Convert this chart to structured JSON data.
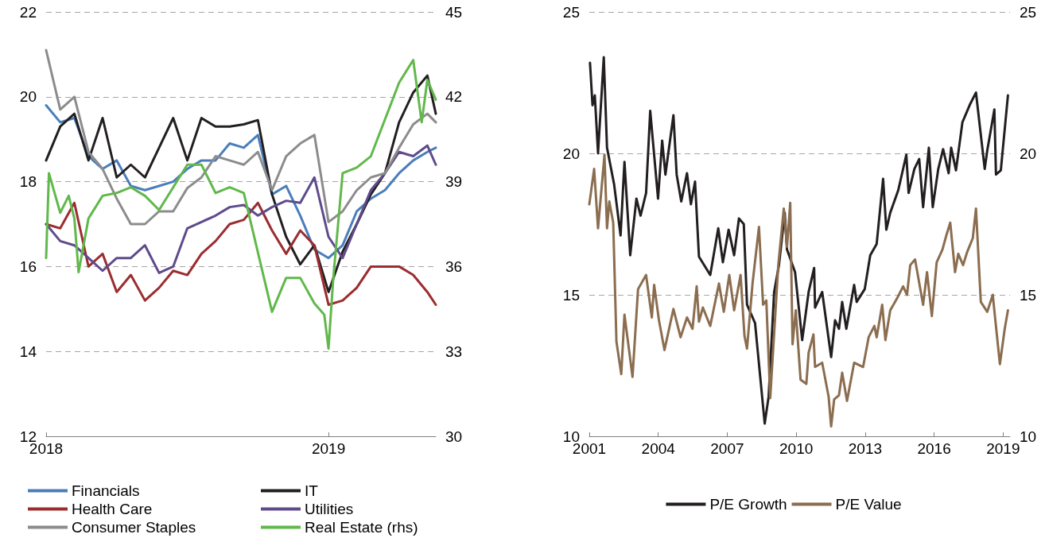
{
  "chart_data": [
    {
      "type": "line",
      "x": [
        2018,
        2018.05,
        2018.1,
        2018.15,
        2018.2,
        2018.25,
        2018.3,
        2018.35,
        2018.4,
        2018.45,
        2018.5,
        2018.55,
        2018.6,
        2018.65,
        2018.7,
        2018.75,
        2018.8,
        2018.85,
        2018.9,
        2018.95,
        2019,
        2019.05,
        2019.1,
        2019.15,
        2019.2,
        2019.25,
        2019.3,
        2019.35,
        2019.38
      ],
      "series": [
        {
          "name": "Financials",
          "color": "#4a7ebb",
          "values": [
            19.8,
            19.4,
            19.5,
            18.6,
            18.3,
            18.5,
            17.9,
            17.8,
            17.9,
            18.0,
            18.3,
            18.5,
            18.5,
            18.9,
            18.8,
            19.1,
            17.7,
            17.9,
            17.2,
            16.4,
            16.2,
            16.5,
            17.3,
            17.6,
            17.8,
            18.2,
            18.5,
            18.7,
            18.8
          ]
        },
        {
          "name": "IT",
          "color": "#231f20",
          "values": [
            18.5,
            19.3,
            19.6,
            18.5,
            19.5,
            18.1,
            18.4,
            18.1,
            18.8,
            19.5,
            18.5,
            19.5,
            19.3,
            19.3,
            19.35,
            19.45,
            17.7,
            16.7,
            16.05,
            16.5,
            15.4,
            16.35,
            17.0,
            17.7,
            18.2,
            19.4,
            20.1,
            20.5,
            19.6
          ]
        },
        {
          "name": "Health Care",
          "color": "#9b2d30",
          "values": [
            17.0,
            16.9,
            17.5,
            16.0,
            16.3,
            15.4,
            15.8,
            15.2,
            15.5,
            15.9,
            15.8,
            16.3,
            16.6,
            17.0,
            17.1,
            17.5,
            16.85,
            16.3,
            16.85,
            16.5,
            15.1,
            15.2,
            15.5,
            16.0,
            16.0,
            16.0,
            15.8,
            15.4,
            15.1
          ]
        },
        {
          "name": "Utilities",
          "color": "#5f4b8b",
          "values": [
            17.0,
            16.6,
            16.5,
            16.2,
            15.9,
            16.2,
            16.2,
            16.5,
            15.85,
            16.0,
            16.9,
            17.05,
            17.2,
            17.4,
            17.45,
            17.2,
            17.4,
            17.55,
            17.5,
            18.1,
            16.7,
            16.2,
            17.0,
            17.8,
            18.2,
            18.7,
            18.6,
            18.85,
            18.4
          ]
        },
        {
          "name": "Consumer Staples",
          "color": "#8c8c8c",
          "values": [
            21.1,
            19.7,
            20.0,
            18.7,
            18.3,
            17.6,
            17.0,
            17.0,
            17.3,
            17.3,
            17.85,
            18.1,
            18.6,
            18.5,
            18.4,
            18.7,
            17.8,
            18.6,
            18.9,
            19.1,
            17.05,
            17.3,
            17.8,
            18.1,
            18.2,
            18.8,
            19.35,
            19.6,
            19.4
          ]
        },
        {
          "name": "Real Estate (rhs)",
          "color": "#61b84b",
          "axis": "y2",
          "x": [
            2018,
            2018.01,
            2018.05,
            2018.08,
            2018.1,
            2018.115,
            2018.15,
            2018.2,
            2018.25,
            2018.3,
            2018.35,
            2018.4,
            2018.45,
            2018.5,
            2018.55,
            2018.6,
            2018.65,
            2018.7,
            2018.75,
            2018.8,
            2018.85,
            2018.9,
            2018.95,
            2018.985,
            2019,
            2019.017,
            2019.05,
            2019.1,
            2019.15,
            2019.2,
            2019.25,
            2019.3,
            2019.33,
            2019.35,
            2019.38
          ],
          "values": [
            36.3,
            39.3,
            37.9,
            38.5,
            37.7,
            35.8,
            37.7,
            38.5,
            38.6,
            38.8,
            38.5,
            38.0,
            38.8,
            39.6,
            39.6,
            38.6,
            38.8,
            38.6,
            36.5,
            34.4,
            35.6,
            35.6,
            34.7,
            34.3,
            33.1,
            35.6,
            39.3,
            39.5,
            39.9,
            41.2,
            42.5,
            43.3,
            41.1,
            42.6,
            41.9
          ]
        }
      ],
      "xlim": [
        2018,
        2019.38
      ],
      "xticks": [
        2018,
        2019
      ],
      "ylim": [
        12,
        22
      ],
      "yticks": [
        12,
        14,
        16,
        18,
        20,
        22
      ],
      "y2lim": [
        30,
        45
      ],
      "y2ticks": [
        30,
        33,
        36,
        39,
        42,
        45
      ],
      "grid": "y",
      "legend": "bottom",
      "marker": "none",
      "line_style": "solid"
    },
    {
      "type": "line",
      "series": [
        {
          "name": "P/E Growth",
          "color": "#231f20",
          "x": [
            2001.03,
            2001.14,
            2001.24,
            2001.38,
            2001.63,
            2001.77,
            2002.08,
            2002.36,
            2002.53,
            2002.78,
            2003.05,
            2003.23,
            2003.47,
            2003.65,
            2003.99,
            2004.17,
            2004.31,
            2004.66,
            2004.8,
            2005.0,
            2005.25,
            2005.42,
            2005.6,
            2005.77,
            2006.26,
            2006.61,
            2006.81,
            2007.06,
            2007.3,
            2007.51,
            2007.72,
            2007.86,
            2008.21,
            2008.63,
            2008.8,
            2009.04,
            2009.25,
            2009.5,
            2009.6,
            2009.95,
            2010.26,
            2010.54,
            2010.78,
            2010.82,
            2011.13,
            2011.52,
            2011.69,
            2011.86,
            2012.0,
            2012.18,
            2012.52,
            2012.63,
            2012.98,
            2013.22,
            2013.5,
            2013.78,
            2013.92,
            2014.09,
            2014.44,
            2014.79,
            2014.89,
            2015.14,
            2015.35,
            2015.52,
            2015.77,
            2015.94,
            2016.18,
            2016.39,
            2016.63,
            2016.74,
            2016.95,
            2017.23,
            2017.57,
            2017.82,
            2018.2,
            2018.31,
            2018.62,
            2018.69,
            2018.9,
            2019.21
          ],
          "values": [
            23.2,
            21.7,
            22.05,
            20.0,
            23.4,
            20.2,
            18.9,
            17.1,
            19.7,
            16.4,
            18.4,
            17.8,
            18.6,
            21.5,
            18.4,
            20.45,
            19.25,
            21.35,
            19.25,
            18.3,
            19.3,
            18.2,
            19.0,
            16.35,
            15.7,
            17.35,
            16.15,
            17.3,
            16.4,
            17.7,
            17.5,
            14.65,
            14.0,
            10.45,
            11.4,
            15.1,
            16.05,
            17.9,
            16.6,
            15.8,
            13.4,
            15.1,
            15.95,
            14.55,
            15.1,
            12.8,
            14.1,
            13.8,
            14.75,
            13.8,
            15.35,
            14.75,
            15.2,
            16.4,
            16.8,
            19.1,
            17.3,
            17.9,
            18.7,
            19.95,
            18.6,
            19.45,
            19.8,
            18.1,
            20.2,
            18.1,
            19.45,
            20.15,
            19.3,
            20.2,
            19.4,
            21.1,
            21.75,
            22.15,
            19.45,
            20.1,
            21.55,
            19.25,
            19.4,
            22.05
          ]
        },
        {
          "name": "P/E Value",
          "color": "#8b6d4f",
          "x": [
            2001.0,
            2001.21,
            2001.38,
            2001.66,
            2001.77,
            2001.87,
            2002.04,
            2002.18,
            2002.39,
            2002.53,
            2002.88,
            2003.12,
            2003.47,
            2003.72,
            2003.82,
            2004.03,
            2004.27,
            2004.66,
            2004.97,
            2005.25,
            2005.49,
            2005.67,
            2005.77,
            2005.94,
            2006.26,
            2006.64,
            2006.85,
            2007.09,
            2007.3,
            2007.58,
            2007.75,
            2007.86,
            2008.1,
            2008.38,
            2008.56,
            2008.7,
            2008.87,
            2009.22,
            2009.46,
            2009.6,
            2009.74,
            2009.84,
            2009.98,
            2010.19,
            2010.44,
            2010.54,
            2010.75,
            2010.82,
            2011.13,
            2011.41,
            2011.52,
            2011.65,
            2011.86,
            2012.0,
            2012.21,
            2012.52,
            2012.91,
            2013.15,
            2013.4,
            2013.5,
            2013.74,
            2013.88,
            2014.09,
            2014.37,
            2014.65,
            2014.82,
            2014.96,
            2015.17,
            2015.52,
            2015.69,
            2015.9,
            2016.11,
            2016.36,
            2016.53,
            2016.7,
            2016.91,
            2017.05,
            2017.26,
            2017.43,
            2017.68,
            2017.82,
            2018.03,
            2018.31,
            2018.55,
            2018.65,
            2018.86,
            2019.07,
            2019.21
          ],
          "values": [
            18.2,
            19.45,
            17.35,
            19.95,
            17.35,
            18.3,
            17.55,
            13.35,
            12.2,
            14.3,
            12.1,
            15.2,
            15.7,
            14.2,
            15.35,
            14.1,
            13.05,
            14.5,
            13.5,
            14.2,
            13.8,
            15.3,
            14.05,
            14.55,
            13.9,
            15.4,
            14.4,
            15.7,
            14.45,
            15.7,
            13.55,
            13.1,
            15.4,
            17.4,
            14.65,
            14.8,
            11.35,
            16.05,
            18.05,
            16.7,
            18.25,
            13.25,
            14.45,
            12.0,
            11.85,
            12.95,
            13.6,
            12.45,
            12.6,
            11.4,
            10.35,
            11.3,
            11.45,
            12.25,
            11.25,
            12.6,
            12.45,
            13.5,
            13.9,
            13.5,
            14.65,
            13.4,
            14.45,
            14.85,
            15.3,
            15.0,
            16.05,
            16.25,
            14.65,
            15.8,
            14.25,
            16.15,
            16.6,
            17.1,
            17.55,
            15.8,
            16.45,
            16.05,
            16.5,
            17.0,
            18.05,
            14.75,
            14.4,
            15.0,
            14.2,
            12.55,
            13.8,
            14.45
          ]
        }
      ],
      "xlim": [
        2001,
        2019.3
      ],
      "xticks": [
        2001,
        2004,
        2007,
        2010,
        2013,
        2016,
        2019
      ],
      "ylim": [
        10,
        25
      ],
      "yticks": [
        10,
        15,
        20,
        25
      ],
      "y2lim": [
        10,
        25
      ],
      "y2ticks": [
        10,
        15,
        20,
        25
      ],
      "grid": "y",
      "legend": "bottom",
      "marker": "none",
      "line_style": "solid"
    }
  ]
}
